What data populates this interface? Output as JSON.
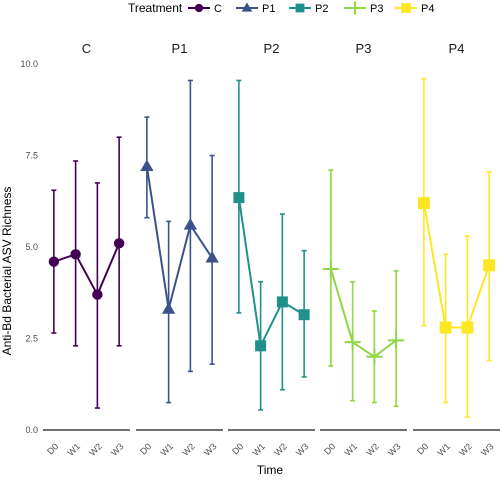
{
  "chart_data": {
    "type": "line",
    "subtype": "faceted point-range with error bars",
    "legend": {
      "title": "Treatment",
      "position": "top",
      "entries": [
        {
          "name": "C",
          "color": "#440154",
          "shape": "circle"
        },
        {
          "name": "P1",
          "color": "#3B528B",
          "shape": "triangle"
        },
        {
          "name": "P2",
          "color": "#21908C",
          "shape": "square"
        },
        {
          "name": "P3",
          "color": "#8FD744",
          "shape": "plus"
        },
        {
          "name": "P4",
          "color": "#FDE725",
          "shape": "square-open"
        }
      ]
    },
    "xlabel": "Time",
    "ylabel": "Anti-Bd Bacterial ASV Richness",
    "categories": [
      "D0",
      "W1",
      "W2",
      "W3"
    ],
    "ylim": [
      0,
      10.5
    ],
    "yticks": [
      "0.0",
      "2.5",
      "5.0",
      "7.5",
      "10.0"
    ],
    "ytick_values": [
      0,
      2.5,
      5,
      7.5,
      10
    ],
    "grid": false,
    "facets": [
      {
        "label": "C",
        "color": "#440154",
        "shape": "circle",
        "mean": [
          4.6,
          4.8,
          3.7,
          5.1
        ],
        "lower": [
          2.65,
          2.3,
          0.6,
          2.3
        ],
        "upper": [
          6.55,
          7.35,
          6.75,
          8.0
        ]
      },
      {
        "label": "P1",
        "color": "#3B528B",
        "shape": "triangle",
        "mean": [
          7.2,
          3.3,
          5.6,
          4.7
        ],
        "lower": [
          5.8,
          0.75,
          1.6,
          1.8
        ],
        "upper": [
          8.55,
          5.7,
          9.55,
          7.5
        ]
      },
      {
        "label": "P2",
        "color": "#21908C",
        "shape": "square",
        "mean": [
          6.35,
          2.3,
          3.5,
          3.15
        ],
        "lower": [
          3.2,
          0.55,
          1.1,
          1.45
        ],
        "upper": [
          9.55,
          4.05,
          5.9,
          4.9
        ]
      },
      {
        "label": "P3",
        "color": "#8FD744",
        "shape": "plus",
        "mean": [
          4.4,
          2.4,
          2.0,
          2.45
        ],
        "lower": [
          1.75,
          0.8,
          0.75,
          0.65
        ],
        "upper": [
          7.1,
          4.05,
          3.25,
          4.35
        ]
      },
      {
        "label": "P4",
        "color": "#FDE725",
        "shape": "square-open",
        "mean": [
          6.2,
          2.8,
          2.8,
          4.5
        ],
        "lower": [
          2.85,
          0.75,
          0.35,
          1.9
        ],
        "upper": [
          9.6,
          4.8,
          5.3,
          7.05
        ]
      }
    ]
  }
}
